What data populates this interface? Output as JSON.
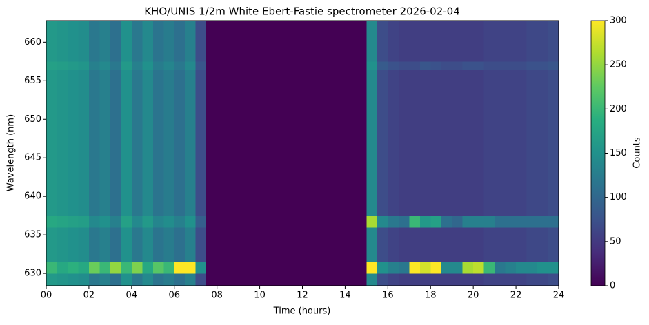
{
  "chart_data": {
    "type": "heatmap",
    "title": "KHO/UNIS 1/2m White Ebert-Fastie spectrometer 2026-02-04",
    "x_label": "Time (hours)",
    "y_label": "Wavelength (nm)",
    "colorbar_label": "Counts",
    "colormap": "viridis",
    "xlim": [
      0,
      24
    ],
    "ylim": [
      628.4,
      662.8
    ],
    "clim": [
      0,
      300
    ],
    "xticks": [
      {
        "value": 0,
        "label": "00"
      },
      {
        "value": 2,
        "label": "02"
      },
      {
        "value": 4,
        "label": "04"
      },
      {
        "value": 6,
        "label": "06"
      },
      {
        "value": 8,
        "label": "08"
      },
      10,
      12,
      14,
      16,
      18,
      20,
      22,
      24
    ],
    "yticks": [
      630,
      635,
      640,
      645,
      650,
      655,
      660
    ],
    "cticks": [
      0,
      50,
      100,
      150,
      200,
      250,
      300
    ],
    "x_edges": [
      0,
      0.5,
      1,
      1.5,
      2,
      2.5,
      3,
      3.5,
      4,
      4.5,
      5,
      5.5,
      6,
      6.5,
      7,
      7.5,
      8,
      8.5,
      9,
      9.5,
      10,
      10.5,
      11,
      11.5,
      12,
      12.5,
      13,
      13.5,
      14,
      14.5,
      15,
      15.5,
      16,
      16.5,
      17,
      17.5,
      18,
      18.5,
      19,
      19.5,
      20,
      20.5,
      21,
      21.5,
      22,
      22.5,
      23,
      23.5,
      24
    ],
    "y_edges": [
      628.4,
      630,
      631.5,
      636,
      637.5,
      656.5,
      657.5,
      662.8
    ],
    "z": [
      [
        160,
        155,
        150,
        145,
        120,
        130,
        110,
        150,
        120,
        140,
        115,
        125,
        110,
        130,
        70,
        0,
        0,
        0,
        0,
        0,
        0,
        0,
        0,
        0,
        0,
        0,
        0,
        0,
        0,
        0,
        140,
        70,
        60,
        55,
        55,
        55,
        55,
        55,
        55,
        55,
        55,
        60,
        60,
        60,
        60,
        65,
        65,
        70
      ],
      [
        200,
        180,
        190,
        180,
        230,
        200,
        250,
        200,
        240,
        180,
        220,
        200,
        300,
        300,
        150,
        0,
        0,
        0,
        0,
        0,
        0,
        0,
        0,
        0,
        0,
        0,
        0,
        0,
        0,
        0,
        300,
        150,
        130,
        120,
        300,
        280,
        300,
        140,
        140,
        260,
        270,
        200,
        120,
        130,
        140,
        140,
        150,
        150
      ],
      [
        160,
        155,
        150,
        145,
        120,
        130,
        110,
        150,
        120,
        140,
        115,
        125,
        110,
        130,
        70,
        0,
        0,
        0,
        0,
        0,
        0,
        0,
        0,
        0,
        0,
        0,
        0,
        0,
        0,
        0,
        140,
        70,
        60,
        55,
        55,
        55,
        55,
        55,
        55,
        55,
        55,
        60,
        60,
        60,
        60,
        65,
        65,
        70
      ],
      [
        180,
        175,
        170,
        165,
        140,
        150,
        130,
        170,
        140,
        160,
        135,
        145,
        130,
        150,
        90,
        0,
        0,
        0,
        0,
        0,
        0,
        0,
        0,
        0,
        0,
        0,
        0,
        0,
        0,
        0,
        260,
        140,
        120,
        110,
        200,
        160,
        170,
        110,
        100,
        130,
        130,
        130,
        110,
        110,
        110,
        110,
        110,
        110
      ],
      [
        160,
        155,
        150,
        145,
        120,
        130,
        110,
        150,
        120,
        140,
        115,
        125,
        110,
        130,
        70,
        0,
        0,
        0,
        0,
        0,
        0,
        0,
        0,
        0,
        0,
        0,
        0,
        0,
        0,
        0,
        140,
        70,
        60,
        55,
        55,
        55,
        55,
        55,
        55,
        55,
        55,
        60,
        60,
        60,
        60,
        65,
        65,
        70
      ],
      [
        170,
        165,
        160,
        155,
        130,
        140,
        120,
        160,
        130,
        150,
        125,
        135,
        120,
        140,
        80,
        0,
        0,
        0,
        0,
        0,
        0,
        0,
        0,
        0,
        0,
        0,
        0,
        0,
        0,
        0,
        150,
        85,
        75,
        70,
        70,
        80,
        75,
        70,
        70,
        75,
        75,
        70,
        70,
        70,
        70,
        75,
        75,
        80
      ],
      [
        160,
        155,
        150,
        145,
        120,
        130,
        110,
        150,
        120,
        140,
        115,
        125,
        110,
        130,
        70,
        0,
        0,
        0,
        0,
        0,
        0,
        0,
        0,
        0,
        0,
        0,
        0,
        0,
        0,
        0,
        140,
        70,
        60,
        55,
        55,
        55,
        55,
        55,
        55,
        55,
        55,
        60,
        60,
        60,
        60,
        65,
        65,
        70
      ]
    ]
  }
}
